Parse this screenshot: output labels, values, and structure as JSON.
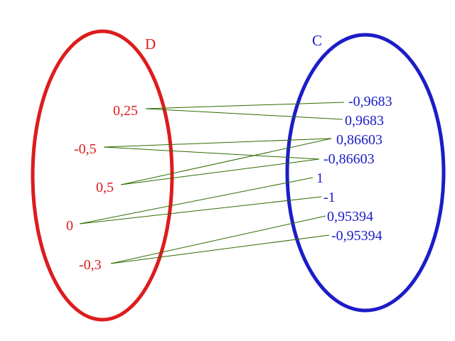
{
  "set_d": {
    "name": "D",
    "color": "#dd1c1c",
    "elements": [
      "0,25",
      "-0,5",
      "0,5",
      "0",
      "-0,3"
    ]
  },
  "set_c": {
    "name": "C",
    "color": "#1c1cc8",
    "elements": [
      "-0,9683",
      "0,9683",
      "0,86603",
      "-0,86603",
      "1",
      "-1",
      "0,95394",
      "-0,95394"
    ]
  },
  "mapping": {
    "line_color": "#2f6b00",
    "pairs": [
      [
        "0,25",
        "-0,9683"
      ],
      [
        "0,25",
        "0,9683"
      ],
      [
        "-0,5",
        "0,86603"
      ],
      [
        "-0,5",
        "-0,86603"
      ],
      [
        "0,5",
        "0,86603"
      ],
      [
        "0,5",
        "-0,86603"
      ],
      [
        "0",
        "1"
      ],
      [
        "0",
        "-1"
      ],
      [
        "-0,3",
        "0,95394"
      ],
      [
        "-0,3",
        "-0,95394"
      ]
    ]
  }
}
